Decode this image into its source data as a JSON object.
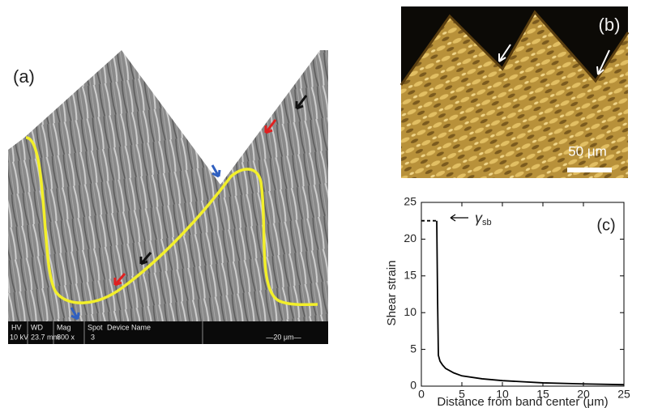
{
  "panel_a": {
    "label": "(a)",
    "info_bar": {
      "headers": [
        "HV",
        "WD",
        "Mag",
        "Spot",
        "Device Name"
      ],
      "values": [
        "10 kV",
        "23.7 mm",
        "800 x",
        "3"
      ],
      "scale": "—20 μm—"
    }
  },
  "panel_b": {
    "label": "(b)",
    "scale_bar": "50 μm"
  },
  "chart_data": {
    "type": "line",
    "label": "(c)",
    "xlabel": "Distance from band center (μm)",
    "ylabel": "Shear strain",
    "annotation": {
      "symbol": "γ",
      "subscript": "sb"
    },
    "xlim": [
      0,
      25
    ],
    "ylim": [
      0,
      25
    ],
    "xticks": [
      0,
      5,
      10,
      15,
      20,
      25
    ],
    "yticks": [
      0,
      5,
      10,
      15,
      20,
      25
    ],
    "grid": false,
    "series": [
      {
        "color": "#000000",
        "dashed": true,
        "x": [
          0,
          1.9
        ],
        "values": [
          22.5,
          22.5
        ]
      },
      {
        "color": "#000000",
        "dashed": false,
        "x": [
          1.9,
          2.0,
          2.1,
          2.3,
          2.6,
          3,
          4,
          5,
          7.5,
          10,
          15,
          20,
          25
        ],
        "values": [
          22.5,
          12,
          4.2,
          3.4,
          2.9,
          2.4,
          1.8,
          1.4,
          1.0,
          0.75,
          0.45,
          0.3,
          0.2
        ]
      }
    ]
  }
}
